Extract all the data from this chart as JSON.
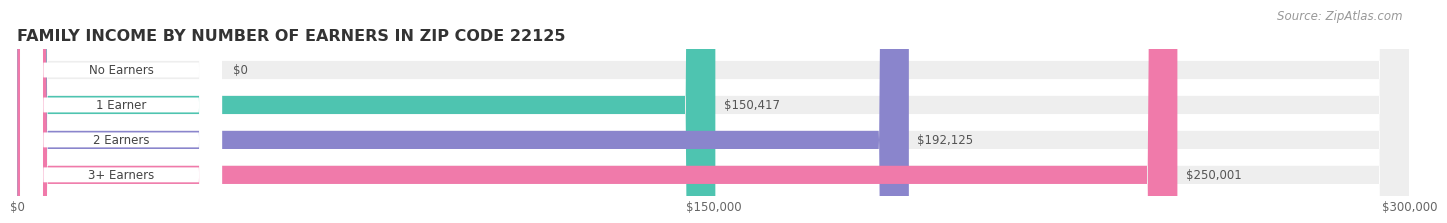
{
  "title": "FAMILY INCOME BY NUMBER OF EARNERS IN ZIP CODE 22125",
  "source": "Source: ZipAtlas.com",
  "categories": [
    "No Earners",
    "1 Earner",
    "2 Earners",
    "3+ Earners"
  ],
  "values": [
    0,
    150417,
    192125,
    250001
  ],
  "bar_colors": [
    "#c9a8d4",
    "#4ec4b0",
    "#8a85cc",
    "#f07aaa"
  ],
  "bar_bg_color": "#eeeeee",
  "value_labels": [
    "$0",
    "$150,417",
    "$192,125",
    "$250,001"
  ],
  "xtick_labels": [
    "$0",
    "$150,000",
    "$300,000"
  ],
  "xtick_values": [
    0,
    150000,
    300000
  ],
  "xlim": [
    0,
    300000
  ],
  "bg_color": "#ffffff",
  "title_fontsize": 11.5,
  "source_fontsize": 8.5,
  "bar_height": 0.52
}
